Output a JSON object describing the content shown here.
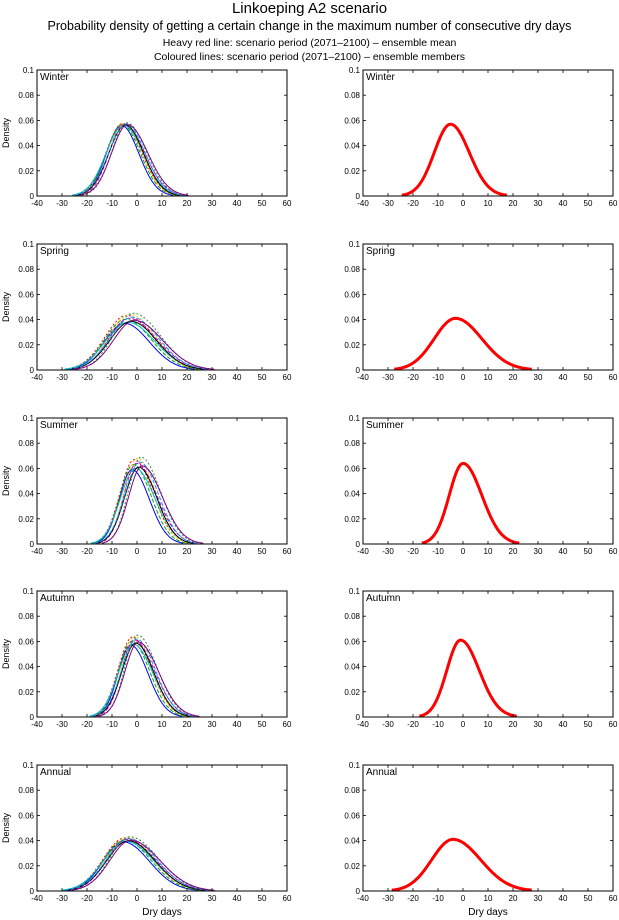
{
  "header": {
    "title": "Linkoeping A2 scenario",
    "subtitle": "Probability density of getting a certain change in the maximum number of consecutive dry days",
    "legend_red": "Heavy red line: scenario period (2071–2100) – ensemble mean",
    "legend_colored": "Coloured lines: scenario period (2071–2100) – ensemble members"
  },
  "axes": {
    "xlabel": "Dry days",
    "ylabel": "Density",
    "xlim": [
      -40,
      60
    ],
    "ylim": [
      0,
      0.1
    ],
    "xticks": [
      -40,
      -30,
      -20,
      -10,
      0,
      10,
      20,
      30,
      40,
      50,
      60
    ],
    "yticks": [
      0,
      0.02,
      0.04,
      0.06,
      0.08,
      0.1
    ],
    "ytick_labels": [
      "0",
      "0.02",
      "0.04",
      "0.06",
      "0.08",
      "0.1"
    ]
  },
  "colors": {
    "mean": "#ff0000",
    "members": [
      "#0000ff",
      "#00aa00",
      "#ff0000",
      "#00bfbf",
      "#bf00bf",
      "#e6c800",
      "#000000",
      "#1e90ff",
      "#2e8b57",
      "#800080"
    ]
  },
  "chart_data": [
    {
      "type": "line",
      "season": "Winter",
      "title": "Winter",
      "left": "ensemble members",
      "mean": {
        "peak_x": -5,
        "peak_y": 0.057,
        "sd_left": 6.5,
        "sd_right": 7.5
      },
      "member_spread": {
        "dx": 1.2,
        "dy": 0.001
      }
    },
    {
      "type": "line",
      "season": "Spring",
      "title": "Spring",
      "left": "ensemble members",
      "mean": {
        "peak_x": -3,
        "peak_y": 0.041,
        "sd_left": 8.5,
        "sd_right": 10.5
      },
      "member_spread": {
        "dx": 2.0,
        "dy": 0.004
      }
    },
    {
      "type": "line",
      "season": "Summer",
      "title": "Summer",
      "left": "ensemble members",
      "mean": {
        "peak_x": 0,
        "peak_y": 0.064,
        "sd_left": 5.5,
        "sd_right": 7.5
      },
      "member_spread": {
        "dx": 2.0,
        "dy": 0.005
      }
    },
    {
      "type": "line",
      "season": "Autumn",
      "title": "Autumn",
      "left": "ensemble members",
      "mean": {
        "peak_x": -1,
        "peak_y": 0.061,
        "sd_left": 5.5,
        "sd_right": 7.5
      },
      "member_spread": {
        "dx": 1.5,
        "dy": 0.004
      }
    },
    {
      "type": "line",
      "season": "Annual",
      "title": "Annual",
      "left": "ensemble members",
      "mean": {
        "peak_x": -4,
        "peak_y": 0.041,
        "sd_left": 8.5,
        "sd_right": 11
      },
      "member_spread": {
        "dx": 1.5,
        "dy": 0.002
      }
    }
  ]
}
